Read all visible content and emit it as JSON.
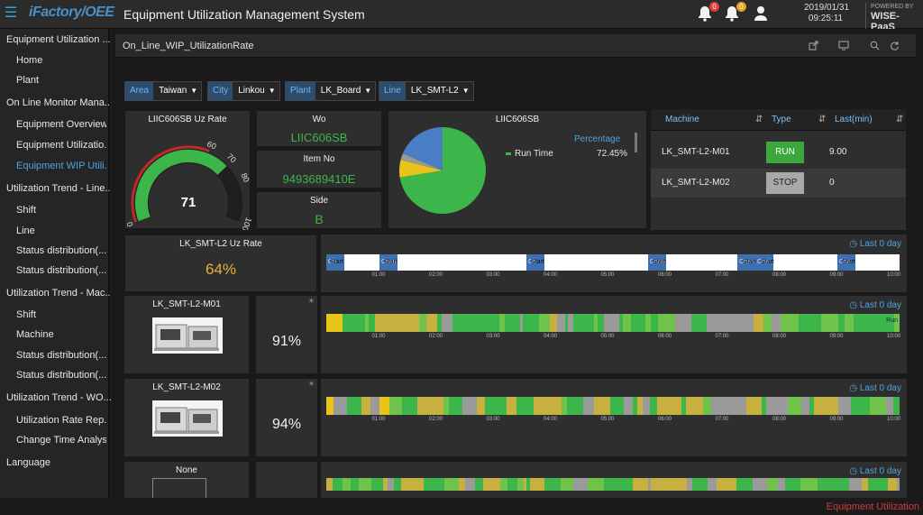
{
  "header": {
    "brand": "iFactory/OEE",
    "title": "Equipment Utilization Management System",
    "notif_count_1": "0",
    "notif_count_2": "0",
    "date": "2019/01/31",
    "time": "09:25:11",
    "powered_by": "POWERED BY",
    "powered_name": "WISE-PaaS"
  },
  "sidebar": {
    "items": [
      {
        "label": "Equipment Utilization ...",
        "level": 1
      },
      {
        "label": "Home",
        "level": 2
      },
      {
        "label": "Plant",
        "level": 2
      },
      {
        "label": "On Line Monitor Mana...",
        "level": 1
      },
      {
        "label": "Equipment Overview",
        "level": 2
      },
      {
        "label": "Equipment Utilizatio...",
        "level": 2
      },
      {
        "label": "Equipment WIP Utili...",
        "level": 2,
        "active": true
      },
      {
        "label": "Utilization Trend - Line...",
        "level": 1
      },
      {
        "label": "Shift",
        "level": 2
      },
      {
        "label": "Line",
        "level": 2
      },
      {
        "label": "Status distribution(...",
        "level": 2
      },
      {
        "label": "Status distribution(...",
        "level": 2
      },
      {
        "label": "Utilization Trend - Mac...",
        "level": 1
      },
      {
        "label": "Shift",
        "level": 2
      },
      {
        "label": "Machine",
        "level": 2
      },
      {
        "label": "Status distribution(...",
        "level": 2
      },
      {
        "label": "Status distribution(...",
        "level": 2
      },
      {
        "label": "Utilization Trend - WO...",
        "level": 1
      },
      {
        "label": "Utilization Rate Rep...",
        "level": 2
      },
      {
        "label": "Change Time Analysis",
        "level": 2
      },
      {
        "label": "Language",
        "level": 1
      }
    ]
  },
  "page": {
    "title": "On_Line_WIP_UtilizationRate"
  },
  "filters": [
    {
      "label": "Area",
      "value": "Taiwan"
    },
    {
      "label": "City",
      "value": "Linkou"
    },
    {
      "label": "Plant",
      "value": "LK_Board"
    },
    {
      "label": "Line",
      "value": "LK_SMT-L2"
    }
  ],
  "gauge": {
    "title": "LIIC606SB Uz Rate",
    "value": "71",
    "ticks": [
      "0",
      "60",
      "70",
      "80",
      "100"
    ]
  },
  "info": {
    "wo_label": "Wo",
    "wo_value": "LIIC606SB",
    "item_label": "Item No",
    "item_value": "9493689410E",
    "side_label": "Side",
    "side_value": "B"
  },
  "pie": {
    "title": "LIIC606SB",
    "legend_header": "Percentage",
    "legend_label": "Run Time",
    "legend_value": "72.45%"
  },
  "chart_data": {
    "type": "pie",
    "title": "LIIC606SB",
    "slices": [
      {
        "name": "Run Time",
        "value": 72.45,
        "color": "#3cb54a"
      },
      {
        "value": 6.5,
        "color": "#e8c31a"
      },
      {
        "value": 2.5,
        "color": "#999999"
      },
      {
        "value": 18.55,
        "color": "#4a7ec4"
      }
    ]
  },
  "machine_table": {
    "headers": [
      "Machine",
      "Type",
      "Last(min)"
    ],
    "rows": [
      {
        "machine": "LK_SMT-L2-M01",
        "type": "RUN",
        "last": "9.00",
        "type_color": "#3ca83c"
      },
      {
        "machine": "LK_SMT-L2-M02",
        "type": "STOP",
        "last": "0",
        "type_color": "#a8a8a8"
      }
    ]
  },
  "line_uz": {
    "title": "LK_SMT-L2 Uz Rate",
    "value": "64%"
  },
  "timelines": {
    "last_day": "Last 0 day",
    "hours": [
      "01:00",
      "02:00",
      "03:00",
      "04:00",
      "05:00",
      "06:00",
      "07:00",
      "08:00",
      "09:00",
      "10:00"
    ],
    "wo_segments": [
      {
        "label": "Ch"
      },
      {
        "label": "Start"
      },
      {
        "label": "Chan"
      },
      {
        "label": "Start"
      },
      {
        "label": "Ch"
      },
      {
        "label": "Start"
      },
      {
        "label": "Chan"
      },
      {
        "label": "Start"
      },
      {
        "label": "Chan"
      },
      {
        "label": "Start"
      },
      {
        "label": "Chai"
      },
      {
        "label": "Start"
      },
      {
        "label": "Cha"
      },
      {
        "label": "Start"
      }
    ],
    "run_label": "Run"
  },
  "machines": [
    {
      "name": "LK_SMT-L2-M01",
      "pct": "91%"
    },
    {
      "name": "LK_SMT-L2-M02",
      "pct": "94%"
    },
    {
      "name": "None",
      "pct": ""
    }
  ],
  "footer": {
    "text": "Equipment Utilization"
  },
  "colors": {
    "run": "#3cb54a",
    "idle": "#e8c31a",
    "stop": "#9a9a9a",
    "accent": "#4da3e0",
    "alarm": "#d23a3a"
  }
}
